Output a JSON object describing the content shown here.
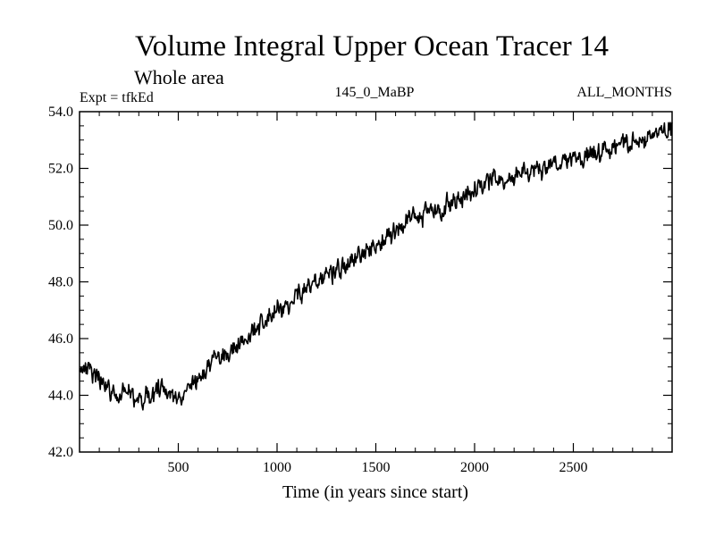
{
  "chart_data": {
    "type": "line",
    "title": "Volume Integral Upper Ocean Tracer 14",
    "subtitle": "Whole area",
    "annotations": {
      "left": "Expt = tfkEd",
      "center": "145_0_MaBP",
      "right": "ALL_MONTHS"
    },
    "xlabel": "Time (in years since start)",
    "ylabel": "",
    "xlim": [
      0,
      3000
    ],
    "ylim": [
      42.0,
      54.0
    ],
    "x_ticks": [
      500,
      1000,
      1500,
      2000,
      2500
    ],
    "x_tick_labels": [
      "500",
      "1000",
      "1500",
      "2000",
      "2500"
    ],
    "y_ticks": [
      42.0,
      44.0,
      46.0,
      48.0,
      50.0,
      52.0,
      54.0
    ],
    "y_tick_labels": [
      "42.0",
      "44.0",
      "46.0",
      "48.0",
      "50.0",
      "52.0",
      "54.0"
    ],
    "grid": false,
    "line_color": "#000000",
    "series": [
      {
        "x": [
          0,
          50,
          100,
          150,
          200,
          250,
          300,
          350,
          400,
          450,
          500,
          550,
          600,
          650,
          700,
          750,
          800,
          850,
          900,
          950,
          1000,
          1050,
          1100,
          1150,
          1200,
          1250,
          1300,
          1350,
          1400,
          1450,
          1500,
          1550,
          1600,
          1650,
          1700,
          1750,
          1800,
          1850,
          1900,
          1950,
          2000,
          2050,
          2100,
          2150,
          2200,
          2250,
          2300,
          2350,
          2400,
          2450,
          2500,
          2550,
          2600,
          2650,
          2700,
          2750,
          2800,
          2850,
          2900,
          2950,
          3000
        ],
        "values": [
          45.0,
          44.9,
          44.6,
          44.2,
          44.0,
          44.0,
          43.9,
          44.0,
          44.1,
          44.0,
          44.0,
          44.2,
          44.6,
          45.0,
          45.3,
          45.5,
          45.7,
          46.1,
          46.4,
          46.7,
          47.0,
          47.2,
          47.5,
          47.8,
          48.1,
          48.3,
          48.5,
          48.7,
          48.9,
          49.1,
          49.3,
          49.5,
          49.8,
          50.1,
          50.2,
          50.3,
          50.5,
          50.7,
          50.8,
          51.0,
          51.2,
          51.4,
          51.6,
          51.7,
          51.7,
          51.8,
          51.9,
          52.0,
          52.1,
          52.2,
          52.3,
          52.4,
          52.5,
          52.6,
          52.7,
          52.8,
          52.9,
          53.0,
          53.1,
          53.3,
          53.4
        ]
      }
    ]
  }
}
